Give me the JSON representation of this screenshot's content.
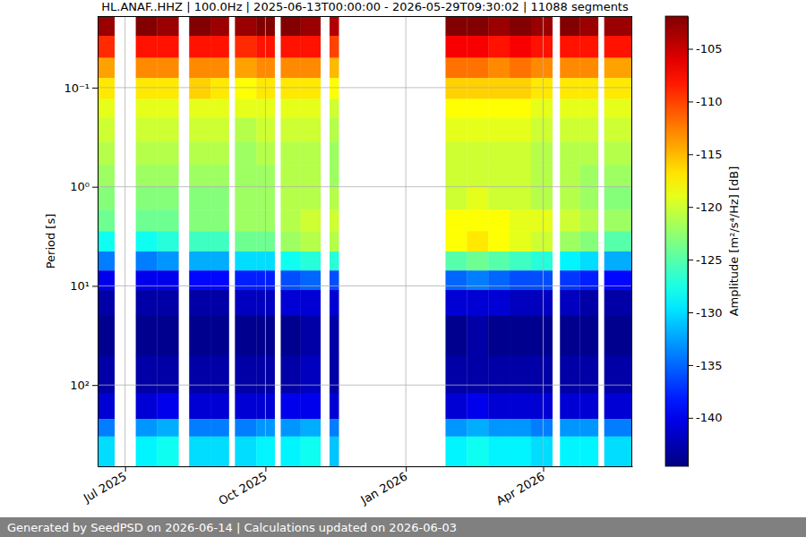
{
  "chart_data": {
    "type": "heatmap",
    "title": "HL.ANAF..HHZ | 100.0Hz | 2025-06-13T00:00:00 - 2026-05-29T09:30:02 | 11088 segments",
    "ylabel": "Period [s]",
    "footer": "Generated by SeedPSD on 2026-06-14 | Calculations updated on 2026-06-03",
    "log": "y",
    "grid": true,
    "xlim": [
      "2025-06-13T00:00:00",
      "2026-05-29T09:30:02"
    ],
    "xticks": [
      {
        "value": "2025-07-01",
        "label": "Jul 2025"
      },
      {
        "value": "2025-10-01",
        "label": "Oct 2025"
      },
      {
        "value": "2026-01-01",
        "label": "Jan 2026"
      },
      {
        "value": "2026-04-01",
        "label": "Apr 2026"
      }
    ],
    "ylim": [
      0.019,
      660
    ],
    "yticks": [
      {
        "value": 0.1,
        "label": "10⁻¹"
      },
      {
        "value": 1,
        "label": "10⁰"
      },
      {
        "value": 10,
        "label": "10¹"
      },
      {
        "value": 100,
        "label": "10²"
      }
    ],
    "x_bins": [
      "2025-06-13T00:00:00",
      "2025-06-24",
      "2025-07-08",
      "2025-07-22",
      "2025-08-05",
      "2025-08-12",
      "2025-08-26",
      "2025-09-07",
      "2025-09-11",
      "2025-09-25",
      "2025-10-07",
      "2025-10-11",
      "2025-10-24",
      "2025-11-06",
      "2025-11-12",
      "2025-11-18",
      "2026-01-27",
      "2026-02-10",
      "2026-02-24",
      "2026-03-10",
      "2026-03-24",
      "2026-04-07",
      "2026-04-12",
      "2026-04-25",
      "2026-05-07",
      "2026-05-11",
      "2026-05-29T09:30:02"
    ],
    "y_bins": [
      0.019,
      0.03,
      0.05,
      0.08,
      0.13,
      0.2,
      0.35,
      0.6,
      1,
      1.7,
      2.8,
      4.5,
      7,
      11,
      20,
      50,
      120,
      220,
      330,
      660
    ],
    "cells": [
      [
        -103,
        null,
        -102,
        -103,
        null,
        -102,
        -103,
        null,
        -103,
        -102,
        null,
        -102,
        -103,
        null,
        -104,
        null,
        -102,
        -102,
        -103,
        -102,
        -103,
        null,
        -102,
        -103,
        null,
        -103
      ],
      [
        -109,
        null,
        -108,
        -108,
        null,
        -108,
        -108,
        null,
        -109,
        -108,
        null,
        -108,
        -108,
        null,
        -110,
        null,
        -107,
        -107,
        -108,
        -107,
        -108,
        null,
        -108,
        -108,
        null,
        -108
      ],
      [
        -114,
        null,
        -113,
        -113,
        null,
        -113,
        -113,
        null,
        -114,
        -113,
        null,
        -113,
        -113,
        null,
        -115,
        null,
        -112,
        -112,
        -113,
        -112,
        -113,
        null,
        -113,
        -113,
        null,
        -114
      ],
      [
        -117,
        null,
        -117,
        -117,
        null,
        -116,
        -117,
        null,
        -118,
        -117,
        null,
        -117,
        -117,
        null,
        -118,
        null,
        -116,
        -116,
        -116,
        -116,
        -117,
        null,
        -117,
        -117,
        null,
        -117
      ],
      [
        -119,
        null,
        -119,
        -119,
        null,
        -119,
        -119,
        null,
        -119,
        -119,
        null,
        -119,
        -119,
        null,
        -120,
        null,
        -118,
        -118,
        -118,
        -118,
        -119,
        null,
        -119,
        -119,
        null,
        -119
      ],
      [
        -120,
        null,
        -120,
        -120,
        null,
        -120,
        -120,
        null,
        -121,
        -120,
        null,
        -120,
        -120,
        null,
        -121,
        null,
        -119,
        -119,
        -119,
        -119,
        -120,
        null,
        -120,
        -120,
        null,
        -120
      ],
      [
        -121,
        null,
        -121,
        -121,
        null,
        -121,
        -121,
        null,
        -122,
        -121,
        null,
        -121,
        -121,
        null,
        -122,
        null,
        -120,
        -120,
        -120,
        -120,
        -121,
        null,
        -121,
        -121,
        null,
        -121
      ],
      [
        -122,
        null,
        -122,
        -122,
        null,
        -122,
        -122,
        null,
        -122,
        -122,
        null,
        -121,
        -121,
        null,
        -122,
        null,
        -120,
        -120,
        -120,
        -120,
        -121,
        null,
        -121,
        -122,
        null,
        -122
      ],
      [
        -123,
        null,
        -123,
        -123,
        null,
        -123,
        -123,
        null,
        -122,
        -122,
        null,
        -121,
        -121,
        null,
        -121,
        null,
        -120,
        -119,
        -120,
        -120,
        -121,
        null,
        -121,
        -122,
        null,
        -123
      ],
      [
        -124,
        null,
        -124,
        -124,
        null,
        -123,
        -123,
        null,
        -122,
        -122,
        null,
        -121,
        -120,
        null,
        -120,
        null,
        -118,
        -118,
        -118,
        -119,
        -119,
        null,
        -120,
        -121,
        null,
        -122
      ],
      [
        -128,
        null,
        -128,
        -127,
        null,
        -126,
        -126,
        null,
        -124,
        -124,
        null,
        -122,
        -121,
        null,
        -121,
        null,
        -118,
        -117,
        -118,
        -119,
        -120,
        null,
        -122,
        -123,
        null,
        -125
      ],
      [
        -134,
        null,
        -134,
        -133,
        null,
        -132,
        -132,
        null,
        -130,
        -130,
        null,
        -128,
        -127,
        null,
        -127,
        null,
        -125,
        -124,
        -125,
        -126,
        -127,
        null,
        -129,
        -130,
        null,
        -132
      ],
      [
        -140,
        null,
        -140,
        -140,
        null,
        -139,
        -139,
        null,
        -138,
        -138,
        null,
        -136,
        -135,
        null,
        -136,
        null,
        -135,
        -134,
        -135,
        -136,
        -136,
        null,
        -137,
        -138,
        null,
        -139
      ],
      [
        -143,
        null,
        -143,
        -143,
        null,
        -143,
        -143,
        null,
        -142,
        -142,
        null,
        -141,
        -141,
        null,
        -141,
        null,
        -141,
        -141,
        -141,
        -142,
        -142,
        null,
        -142,
        -143,
        null,
        -143
      ],
      [
        -144,
        null,
        -144,
        -144,
        null,
        -144,
        -144,
        null,
        -144,
        -144,
        null,
        -144,
        -143,
        null,
        -143,
        null,
        -144,
        -143,
        -144,
        -144,
        -144,
        null,
        -144,
        -144,
        null,
        -144
      ],
      [
        -143,
        null,
        -143,
        -143,
        null,
        -143,
        -143,
        null,
        -143,
        -143,
        null,
        -143,
        -142,
        null,
        -143,
        null,
        -143,
        -143,
        -143,
        -143,
        -143,
        null,
        -143,
        -143,
        null,
        -143
      ],
      [
        -141,
        null,
        -141,
        -140,
        null,
        -141,
        -141,
        null,
        -141,
        -141,
        null,
        -140,
        -140,
        null,
        -141,
        null,
        -141,
        -140,
        -141,
        -141,
        -141,
        null,
        -141,
        -141,
        null,
        -141
      ],
      [
        -134,
        null,
        -133,
        -132,
        null,
        -134,
        -134,
        null,
        -134,
        -133,
        null,
        -133,
        -132,
        null,
        -134,
        null,
        -133,
        -132,
        -133,
        -133,
        -134,
        null,
        -133,
        -133,
        null,
        -134
      ],
      [
        -130,
        null,
        -129,
        -128,
        null,
        -130,
        -130,
        null,
        -130,
        -129,
        null,
        -129,
        -128,
        null,
        -131,
        null,
        -129,
        -128,
        -129,
        -129,
        -130,
        null,
        -129,
        -129,
        null,
        -130
      ]
    ],
    "colorbar": {
      "label": "Amplitude [m²/s⁴/Hz] [dB]",
      "range": [
        -144.6,
        -101.9
      ],
      "ticks": [
        -140,
        -135,
        -130,
        -125,
        -120,
        -115,
        -110,
        -105
      ]
    }
  }
}
